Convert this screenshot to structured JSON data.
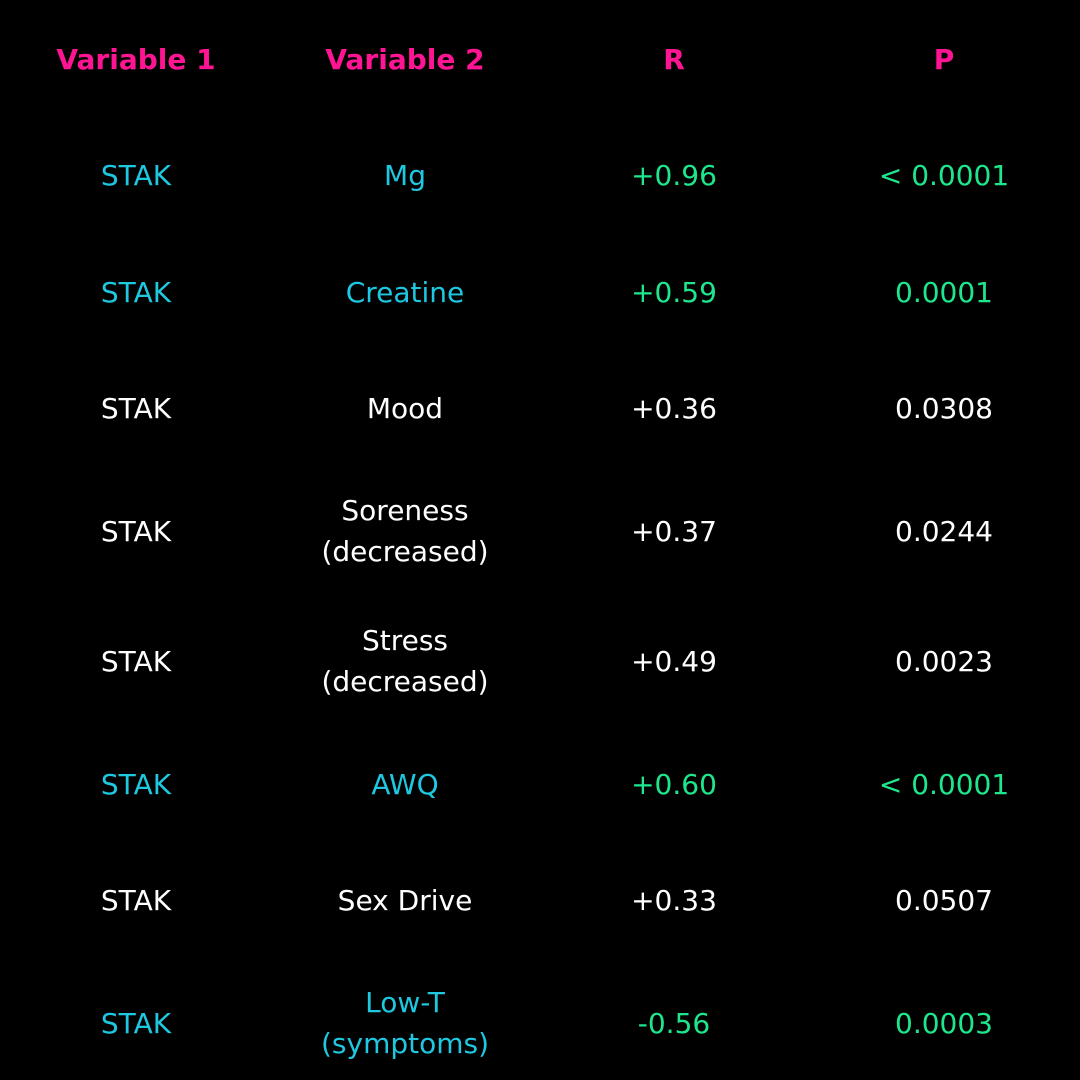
{
  "colors": {
    "background": "#000000",
    "header": "#ff1493",
    "cyan": "#1ec8e0",
    "green": "#1ee68c",
    "white": "#ffffff"
  },
  "header": [
    "Variable 1",
    "Variable 2",
    "R",
    "P"
  ],
  "rows": [
    {
      "var1": "STAK",
      "var2": [
        "Mg"
      ],
      "r": "+0.96",
      "p": "< 0.0001",
      "highlight": true
    },
    {
      "var1": "STAK",
      "var2": [
        "Creatine"
      ],
      "r": "+0.59",
      "p": "0.0001",
      "highlight": true
    },
    {
      "var1": "STAK",
      "var2": [
        "Mood"
      ],
      "r": "+0.36",
      "p": "0.0308",
      "highlight": false
    },
    {
      "var1": "STAK",
      "var2": [
        "Soreness",
        "(decreased)"
      ],
      "r": "+0.37",
      "p": "0.0244",
      "highlight": false
    },
    {
      "var1": "STAK",
      "var2": [
        "Stress",
        "(decreased)"
      ],
      "r": "+0.49",
      "p": "0.0023",
      "highlight": false
    },
    {
      "var1": "STAK",
      "var2": [
        "AWQ"
      ],
      "r": "+0.60",
      "p": "< 0.0001",
      "highlight": true
    },
    {
      "var1": "STAK",
      "var2": [
        "Sex Drive"
      ],
      "r": "+0.33",
      "p": "0.0507",
      "highlight": false
    },
    {
      "var1": "STAK",
      "var2": [
        "Low-T",
        "(symptoms)"
      ],
      "r": "-0.56",
      "p": "0.0003",
      "highlight": true
    }
  ]
}
